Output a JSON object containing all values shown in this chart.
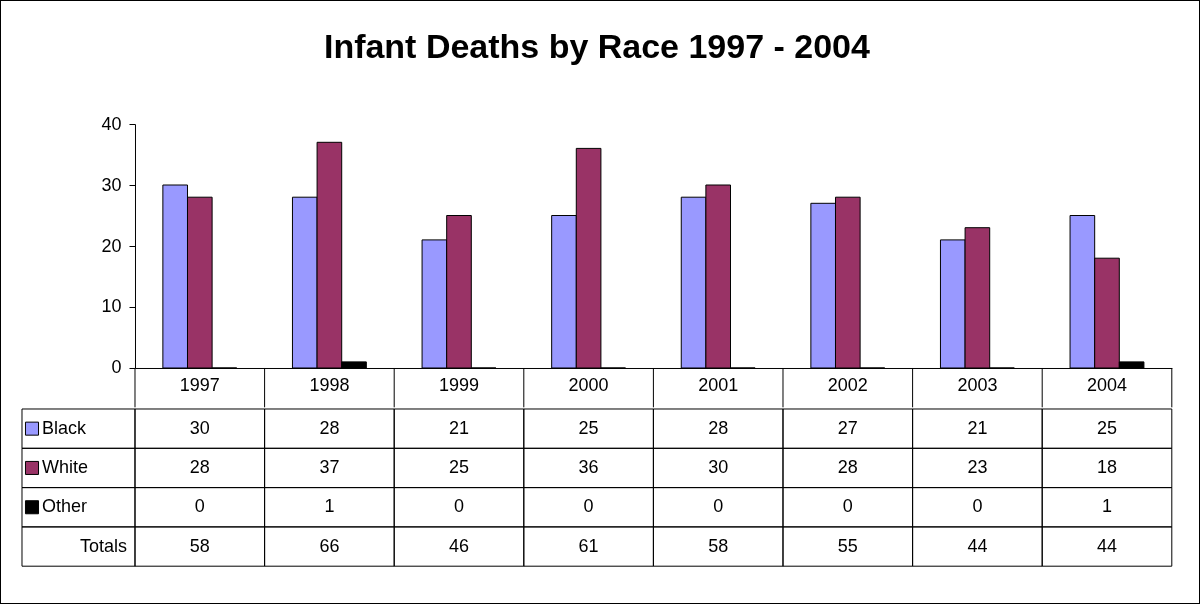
{
  "chart_data": {
    "type": "bar",
    "title": "Infant Deaths by Race 1997 - 2004",
    "categories": [
      "1997",
      "1998",
      "1999",
      "2000",
      "2001",
      "2002",
      "2003",
      "2004"
    ],
    "series": [
      {
        "name": "Black",
        "color": "#9999ff",
        "values": [
          30,
          28,
          21,
          25,
          28,
          27,
          21,
          25
        ]
      },
      {
        "name": "White",
        "color": "#993366",
        "values": [
          28,
          37,
          25,
          36,
          30,
          28,
          23,
          18
        ]
      },
      {
        "name": "Other",
        "color": "#000000",
        "values": [
          0,
          1,
          0,
          0,
          0,
          0,
          0,
          1
        ]
      }
    ],
    "annotations": [
      "Totals",
      "58",
      "66",
      "46",
      "61",
      "58",
      "55",
      "44",
      "44"
    ],
    "ylim": [
      0,
      40
    ],
    "yticks": [
      0,
      10,
      20,
      30,
      40
    ],
    "grid": false,
    "data_labels": true,
    "legend": "bottom left"
  }
}
